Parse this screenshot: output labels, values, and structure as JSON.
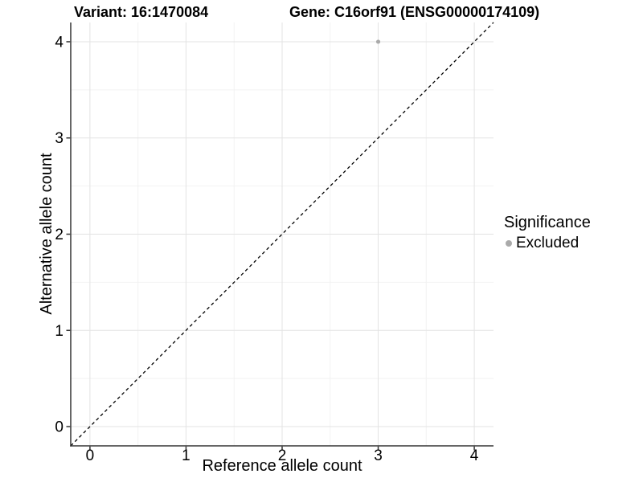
{
  "header": {
    "variant_title": "Variant: 16:1470084",
    "gene_title": "Gene: C16orf91 (ENSG00000174109)"
  },
  "legend": {
    "title": "Significance",
    "items": [
      {
        "label": "Excluded",
        "color": "#aaaaaa",
        "marker": "dot"
      }
    ]
  },
  "chart_data": {
    "type": "scatter",
    "xlabel": "Reference allele count",
    "ylabel": "Alternative allele count",
    "xlim": [
      -0.2,
      4.2
    ],
    "ylim": [
      -0.2,
      4.2
    ],
    "xticks": [
      0,
      1,
      2,
      3,
      4
    ],
    "yticks": [
      0,
      1,
      2,
      3,
      4
    ],
    "minor_xticks": [
      0.5,
      1.5,
      2.5,
      3.5
    ],
    "minor_yticks": [
      0.5,
      1.5,
      2.5,
      3.5
    ],
    "grid": "major+minor",
    "legend_position": "right",
    "series": [
      {
        "name": "Excluded",
        "color": "#aaaaaa",
        "points": [
          {
            "x": 3,
            "y": 4
          }
        ]
      }
    ],
    "reference_line": {
      "kind": "identity",
      "from": [
        -0.2,
        -0.2
      ],
      "to": [
        4.2,
        4.2
      ],
      "style": "dashed",
      "color": "#000000"
    }
  },
  "style": {
    "major_grid_color": "#e3e3e3",
    "minor_grid_color": "#f2f2f2",
    "axis_line_color": "#333333",
    "tick_color": "#333333",
    "text_color": "#000000",
    "point_radius": 2.6,
    "background": "#ffffff"
  }
}
